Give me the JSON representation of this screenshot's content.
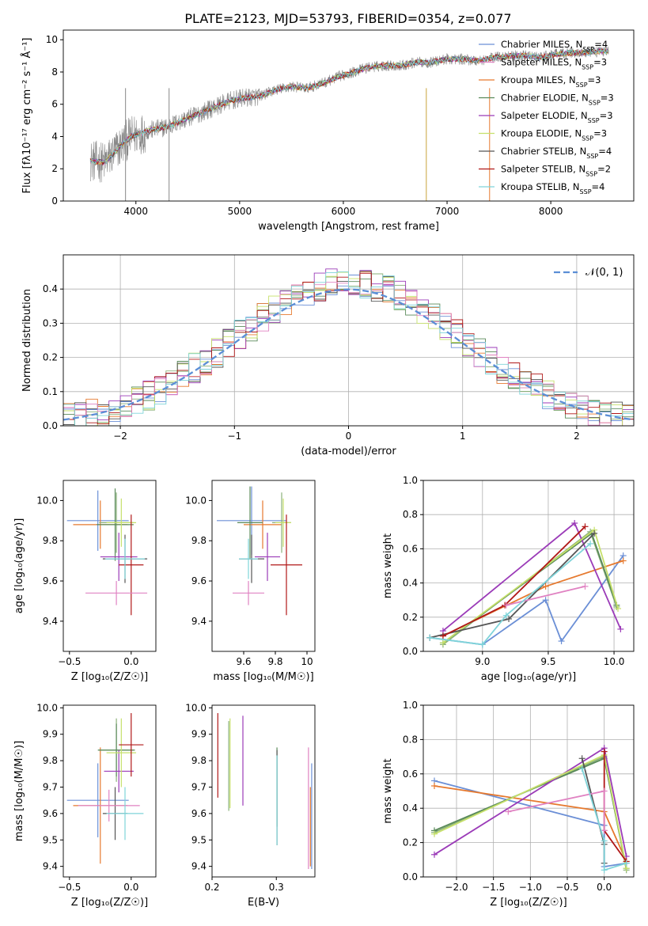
{
  "title": "PLATE=2123, MJD=53793, FIBERID=0354, z=0.077",
  "palette": [
    "#6b8fd6",
    "#e6792e",
    "#8ab07a",
    "#5a8a5a",
    "#9b3bb8",
    "#c6e06a",
    "#555555",
    "#b01818",
    "#e082c2",
    "#7fd4d9",
    "#888888",
    "#c9a43b"
  ],
  "chart_data": [
    {
      "id": "spectrum",
      "type": "line",
      "title": "PLATE=2123, MJD=53793, FIBERID=0354, z=0.077",
      "xlabel": "wavelength [Angstrom, rest frame]",
      "ylabel": "Flux [fλ10⁻¹⁷ erg cm⁻² s⁻¹ Å⁻¹]",
      "xlim": [
        3300,
        8800
      ],
      "ylim": [
        0,
        10.6
      ],
      "xticks": [
        4000,
        5000,
        6000,
        7000,
        8000
      ],
      "yticks": [
        0,
        2,
        4,
        6,
        8,
        10
      ],
      "grid": false,
      "legend_position": "top-right",
      "data_color": "#888888",
      "data_x": [
        3560,
        3700,
        3850,
        3950,
        4050,
        4150,
        4300,
        4450,
        4600,
        4750,
        4900,
        5050,
        5200,
        5350,
        5500,
        5650,
        5800,
        5950,
        6100,
        6250,
        6400,
        6550,
        6700,
        6850,
        7000,
        7150,
        7300,
        7450,
        7600,
        7750,
        7900,
        8050,
        8200,
        8350,
        8500
      ],
      "data_y": [
        2.5,
        2.4,
        3.4,
        4.0,
        4.2,
        4.4,
        4.6,
        5.0,
        5.4,
        5.8,
        6.2,
        6.4,
        6.5,
        6.9,
        7.1,
        7.0,
        7.3,
        7.7,
        8.0,
        8.3,
        8.4,
        8.4,
        8.6,
        8.6,
        8.8,
        8.8,
        8.7,
        8.9,
        9.0,
        9.0,
        8.9,
        9.1,
        9.2,
        9.2,
        9.3
      ],
      "series": [
        {
          "name": "Chabrier MILES, N_SSP=4",
          "color": "#6b8fd6"
        },
        {
          "name": "Salpeter MILES, N_SSP=3",
          "color": "#e082c2"
        },
        {
          "name": "Kroupa MILES, N_SSP=3",
          "color": "#e6792e"
        },
        {
          "name": "Chabrier ELODIE, N_SSP=3",
          "color": "#5a8a5a"
        },
        {
          "name": "Salpeter ELODIE, N_SSP=3",
          "color": "#9b3bb8"
        },
        {
          "name": "Kroupa ELODIE, N_SSP=3",
          "color": "#c6e06a"
        },
        {
          "name": "Chabrier STELIB, N_SSP=4",
          "color": "#555555"
        },
        {
          "name": "Salpeter STELIB, N_SSP=2",
          "color": "#b01818"
        },
        {
          "name": "Kroupa STELIB, N_SSP=4",
          "color": "#7fd4d9"
        }
      ]
    },
    {
      "id": "residuals",
      "type": "line",
      "xlabel": "(data-model)/error",
      "ylabel": "Normed distribution",
      "xlim": [
        -2.5,
        2.5
      ],
      "ylim": [
        0,
        0.5
      ],
      "xticks": [
        -2,
        -1,
        0,
        1,
        2
      ],
      "yticks": [
        0.0,
        0.1,
        0.2,
        0.3,
        0.4
      ],
      "grid": true,
      "legend_position": "top-right",
      "gaussian_label": "𝒩(0, 1)",
      "gaussian_color": "#5b8ed6",
      "bin_edges_start": -2.5,
      "bin_width": 0.1,
      "n_bins": 50,
      "hist_colors": [
        "#6b8fd6",
        "#e6792e",
        "#8ab07a",
        "#5a8a5a",
        "#9b3bb8",
        "#c6e06a",
        "#555555",
        "#b01818",
        "#e082c2",
        "#7fd4d9"
      ]
    },
    {
      "id": "age-vs-Z",
      "type": "scatter",
      "xlabel": "Z [log₁₀(Z/Z☉)]",
      "ylabel": "age  [log₁₀(age/yr)]",
      "xlim": [
        -0.55,
        0.2
      ],
      "ylim": [
        9.25,
        10.1
      ],
      "xticks": [
        -0.5,
        0.0
      ],
      "yticks": [
        9.4,
        9.6,
        9.8,
        10.0
      ],
      "grid": false,
      "points": [
        {
          "x": -0.27,
          "y": 9.9,
          "xerr": 0.25,
          "yerr": 0.15,
          "color": "#6b8fd6"
        },
        {
          "x": -0.25,
          "y": 9.88,
          "xerr": 0.22,
          "yerr": 0.12,
          "color": "#e6792e"
        },
        {
          "x": -0.12,
          "y": 9.89,
          "xerr": 0.14,
          "yerr": 0.15,
          "color": "#8ab07a"
        },
        {
          "x": -0.13,
          "y": 9.88,
          "xerr": 0.15,
          "yerr": 0.18,
          "color": "#5a8a5a"
        },
        {
          "x": -0.1,
          "y": 9.72,
          "xerr": 0.15,
          "yerr": 0.12,
          "color": "#9b3bb8"
        },
        {
          "x": -0.08,
          "y": 9.89,
          "xerr": 0.12,
          "yerr": 0.12,
          "color": "#c6e06a"
        },
        {
          "x": -0.05,
          "y": 9.71,
          "xerr": 0.18,
          "yerr": 0.12,
          "color": "#555555"
        },
        {
          "x": 0.0,
          "y": 9.68,
          "xerr": 0.1,
          "yerr": 0.25,
          "color": "#b01818"
        },
        {
          "x": -0.12,
          "y": 9.54,
          "xerr": 0.25,
          "yerr": 0.06,
          "color": "#e082c2"
        },
        {
          "x": -0.05,
          "y": 9.71,
          "xerr": 0.16,
          "yerr": 0.1,
          "color": "#7fd4d9"
        }
      ]
    },
    {
      "id": "age-vs-mass",
      "type": "scatter",
      "xlabel": "mass [log₁₀(M/M☉)]",
      "ylabel": "",
      "xlim": [
        9.4,
        10.05
      ],
      "ylim": [
        9.25,
        10.1
      ],
      "xticks": [
        9.6,
        9.8,
        10.0
      ],
      "yticks": [
        9.4,
        9.6,
        9.8,
        10.0
      ],
      "grid": false,
      "points": [
        {
          "x": 9.65,
          "y": 9.9,
          "xerr": 0.22,
          "yerr": 0.17,
          "color": "#6b8fd6"
        },
        {
          "x": 9.72,
          "y": 9.88,
          "xerr": 0.12,
          "yerr": 0.12,
          "color": "#e6792e"
        },
        {
          "x": 9.84,
          "y": 9.89,
          "xerr": 0.06,
          "yerr": 0.15,
          "color": "#8ab07a"
        },
        {
          "x": 9.64,
          "y": 9.89,
          "xerr": 0.08,
          "yerr": 0.18,
          "color": "#5a8a5a"
        },
        {
          "x": 9.75,
          "y": 9.72,
          "xerr": 0.08,
          "yerr": 0.12,
          "color": "#9b3bb8"
        },
        {
          "x": 9.85,
          "y": 9.89,
          "xerr": 0.05,
          "yerr": 0.12,
          "color": "#c6e06a"
        },
        {
          "x": 9.65,
          "y": 9.71,
          "xerr": 0.08,
          "yerr": 0.12,
          "color": "#555555"
        },
        {
          "x": 9.87,
          "y": 9.68,
          "xerr": 0.1,
          "yerr": 0.25,
          "color": "#b01818"
        },
        {
          "x": 9.63,
          "y": 9.54,
          "xerr": 0.1,
          "yerr": 0.06,
          "color": "#e082c2"
        },
        {
          "x": 9.63,
          "y": 9.71,
          "xerr": 0.06,
          "yerr": 0.1,
          "color": "#7fd4d9"
        }
      ]
    },
    {
      "id": "weight-vs-age",
      "type": "line",
      "xlabel": "age  [log₁₀(age/yr)]",
      "ylabel": "mass weight",
      "xlim": [
        8.55,
        10.15
      ],
      "ylim": [
        0,
        1.0
      ],
      "xticks": [
        9.0,
        9.5,
        10.0
      ],
      "yticks": [
        0.0,
        0.2,
        0.4,
        0.6,
        0.8,
        1.0
      ],
      "grid": true,
      "series": [
        {
          "color": "#6b8fd6",
          "x": [
            8.6,
            9.0,
            9.48,
            9.6,
            10.07
          ],
          "y": [
            0.08,
            0.04,
            0.3,
            0.06,
            0.56
          ]
        },
        {
          "color": "#e6792e",
          "x": [
            8.7,
            9.48,
            10.07
          ],
          "y": [
            0.09,
            0.38,
            0.53
          ]
        },
        {
          "color": "#8ab07a",
          "x": [
            8.7,
            9.82,
            10.02
          ],
          "y": [
            0.04,
            0.7,
            0.26
          ]
        },
        {
          "color": "#5a8a5a",
          "x": [
            8.7,
            9.83,
            10.02
          ],
          "y": [
            0.05,
            0.69,
            0.27
          ]
        },
        {
          "color": "#9b3bb8",
          "x": [
            8.7,
            9.7,
            10.05
          ],
          "y": [
            0.12,
            0.75,
            0.13
          ]
        },
        {
          "color": "#c6e06a",
          "x": [
            8.7,
            9.85,
            10.03
          ],
          "y": [
            0.05,
            0.71,
            0.25
          ]
        },
        {
          "color": "#555555",
          "x": [
            8.6,
            9.2,
            9.85
          ],
          "y": [
            0.08,
            0.19,
            0.69
          ]
        },
        {
          "color": "#b01818",
          "x": [
            8.7,
            9.17,
            9.78
          ],
          "y": [
            0.09,
            0.27,
            0.73
          ]
        },
        {
          "color": "#e082c2",
          "x": [
            9.18,
            9.78
          ],
          "y": [
            0.27,
            0.38
          ]
        },
        {
          "color": "#7fd4d9",
          "x": [
            8.6,
            9.0,
            9.18,
            9.82
          ],
          "y": [
            0.08,
            0.04,
            0.21,
            0.63
          ]
        }
      ]
    },
    {
      "id": "mass-vs-Z",
      "type": "scatter",
      "xlabel": "Z [log₁₀(Z/Z☉)]",
      "ylabel": "mass [log₁₀(M/M☉)]",
      "xlim": [
        -0.55,
        0.2
      ],
      "ylim": [
        9.36,
        10.01
      ],
      "xticks": [
        -0.5,
        0.0
      ],
      "yticks": [
        9.4,
        9.5,
        9.6,
        9.7,
        9.8,
        9.9,
        10.0
      ],
      "grid": false,
      "points": [
        {
          "x": -0.27,
          "y": 9.65,
          "xerr": 0.25,
          "yerr": 0.14,
          "color": "#6b8fd6"
        },
        {
          "x": -0.25,
          "y": 9.63,
          "xerr": 0.22,
          "yerr": 0.22,
          "color": "#e6792e"
        },
        {
          "x": -0.12,
          "y": 9.84,
          "xerr": 0.14,
          "yerr": 0.12,
          "color": "#8ab07a"
        },
        {
          "x": -0.12,
          "y": 9.84,
          "xerr": 0.15,
          "yerr": 0.1,
          "color": "#5a8a5a"
        },
        {
          "x": -0.1,
          "y": 9.76,
          "xerr": 0.12,
          "yerr": 0.08,
          "color": "#9b3bb8"
        },
        {
          "x": -0.08,
          "y": 9.83,
          "xerr": 0.12,
          "yerr": 0.13,
          "color": "#c6e06a"
        },
        {
          "x": -0.13,
          "y": 9.6,
          "xerr": 0.1,
          "yerr": 0.1,
          "color": "#555555"
        },
        {
          "x": 0.0,
          "y": 9.86,
          "xerr": 0.1,
          "yerr": 0.12,
          "color": "#b01818"
        },
        {
          "x": -0.18,
          "y": 9.63,
          "xerr": 0.25,
          "yerr": 0.06,
          "color": "#e082c2"
        },
        {
          "x": -0.05,
          "y": 9.6,
          "xerr": 0.15,
          "yerr": 0.1,
          "color": "#7fd4d9"
        }
      ]
    },
    {
      "id": "mass-vs-ebv",
      "type": "scatter",
      "xlabel": "E(B-V)",
      "ylabel": "",
      "xlim": [
        0.2,
        0.36
      ],
      "ylim": [
        9.36,
        10.01
      ],
      "xticks": [
        0.2,
        0.3
      ],
      "yticks": [
        9.4,
        9.5,
        9.6,
        9.7,
        9.8,
        9.9,
        10.0
      ],
      "grid": false,
      "points": [
        {
          "x": 0.355,
          "y": 9.59,
          "yerr": 0.2,
          "color": "#6b8fd6"
        },
        {
          "x": 0.353,
          "y": 9.55,
          "yerr": 0.15,
          "color": "#e6792e"
        },
        {
          "x": 0.226,
          "y": 9.78,
          "yerr": 0.17,
          "color": "#8ab07a"
        },
        {
          "x": 0.301,
          "y": 9.7,
          "yerr": 0.15,
          "color": "#5a8a5a"
        },
        {
          "x": 0.248,
          "y": 9.8,
          "yerr": 0.17,
          "color": "#9b3bb8"
        },
        {
          "x": 0.228,
          "y": 9.79,
          "yerr": 0.17,
          "color": "#c6e06a"
        },
        {
          "x": 0.301,
          "y": 9.66,
          "yerr": 0.18,
          "color": "#555555"
        },
        {
          "x": 0.209,
          "y": 9.82,
          "yerr": 0.16,
          "color": "#b01818"
        },
        {
          "x": 0.35,
          "y": 9.62,
          "yerr": 0.23,
          "color": "#e082c2"
        },
        {
          "x": 0.301,
          "y": 9.65,
          "yerr": 0.17,
          "color": "#7fd4d9"
        }
      ]
    },
    {
      "id": "weight-vs-Z",
      "type": "line",
      "xlabel": "Z [log₁₀(Z/Z☉)]",
      "ylabel": "mass weight",
      "xlim": [
        -2.45,
        0.4
      ],
      "ylim": [
        0,
        1.0
      ],
      "xticks": [
        -2.0,
        -1.5,
        -1.0,
        -0.5,
        0.0
      ],
      "yticks": [
        0.0,
        0.2,
        0.4,
        0.6,
        0.8,
        1.0
      ],
      "grid": true,
      "series": [
        {
          "color": "#6b8fd6",
          "x": [
            -2.3,
            0.0,
            0.0,
            0.3
          ],
          "y": [
            0.56,
            0.3,
            0.06,
            0.08
          ]
        },
        {
          "color": "#e6792e",
          "x": [
            -2.3,
            0.0,
            0.3
          ],
          "y": [
            0.53,
            0.38,
            0.09
          ]
        },
        {
          "color": "#8ab07a",
          "x": [
            -2.3,
            0.0,
            0.3
          ],
          "y": [
            0.26,
            0.7,
            0.04
          ]
        },
        {
          "color": "#5a8a5a",
          "x": [
            -2.3,
            0.0,
            0.3
          ],
          "y": [
            0.27,
            0.69,
            0.05
          ]
        },
        {
          "color": "#9b3bb8",
          "x": [
            -2.3,
            0.0,
            0.3
          ],
          "y": [
            0.13,
            0.75,
            0.12
          ]
        },
        {
          "color": "#c6e06a",
          "x": [
            -2.3,
            0.0,
            0.3
          ],
          "y": [
            0.25,
            0.71,
            0.05
          ]
        },
        {
          "color": "#555555",
          "x": [
            -0.3,
            0.0,
            0.0
          ],
          "y": [
            0.69,
            0.19,
            0.08
          ]
        },
        {
          "color": "#b01818",
          "x": [
            0.0,
            0.0,
            0.3
          ],
          "y": [
            0.73,
            0.27,
            0.09
          ]
        },
        {
          "color": "#e082c2",
          "x": [
            -1.3,
            0.0,
            0.0
          ],
          "y": [
            0.38,
            0.5,
            0.27
          ]
        },
        {
          "color": "#7fd4d9",
          "x": [
            -0.3,
            0.0,
            0.0,
            0.3
          ],
          "y": [
            0.63,
            0.21,
            0.04,
            0.08
          ]
        }
      ]
    }
  ]
}
